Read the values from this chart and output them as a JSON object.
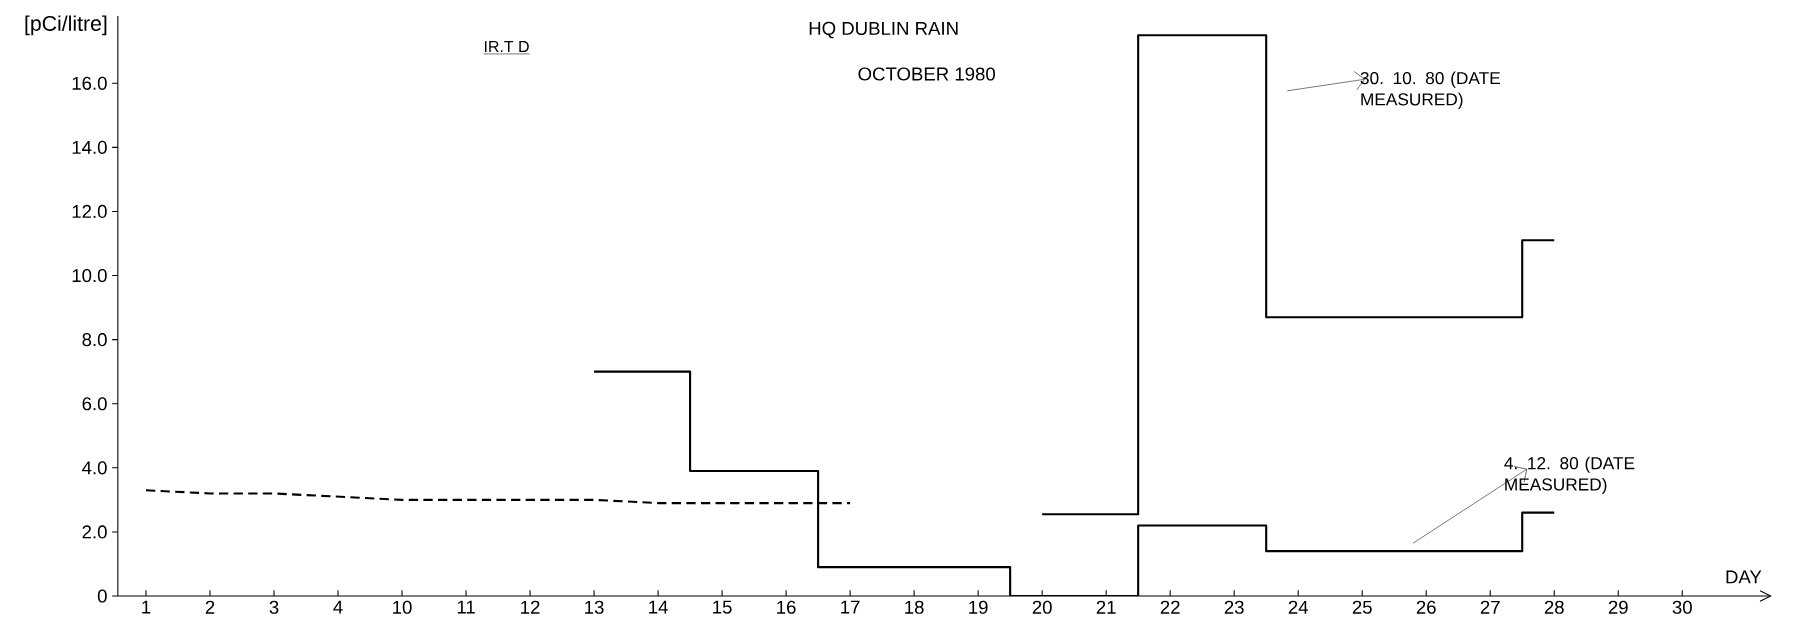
{
  "chart_data": {
    "type": "step",
    "title": "HQ DUBLIN RAIN",
    "subtitle": "OCTOBER 1980",
    "xlabel": "DAY",
    "ylabel": "[pCi/litre]",
    "categories": [
      "1",
      "2",
      "3",
      "4",
      "10",
      "11",
      "12",
      "13",
      "14",
      "15",
      "16",
      "17",
      "18",
      "19",
      "20",
      "21",
      "22",
      "23",
      "24",
      "25",
      "26",
      "27",
      "28",
      "29",
      "30"
    ],
    "ylim": [
      0,
      18.1
    ],
    "yticks": [
      0,
      {
        "value": 2,
        "label": "2.0"
      },
      {
        "value": 4,
        "label": "4.0"
      },
      {
        "value": 6,
        "label": "6.0"
      },
      {
        "value": 8,
        "label": "8.0"
      },
      {
        "value": 10,
        "label": "10.0"
      },
      {
        "value": 12,
        "label": "12.0"
      },
      {
        "value": 14,
        "label": "14.0"
      },
      {
        "value": 16,
        "label": "16.0"
      }
    ],
    "marker": "none",
    "series": [
      {
        "color": "#000000",
        "values": [
          null,
          null,
          null,
          null,
          null,
          null,
          null,
          7.0,
          7.0,
          3.9,
          3.9,
          0.9,
          0.9,
          0.9,
          0.0,
          0.0,
          2.2,
          2.2,
          1.4,
          1.4,
          1.4,
          1.4,
          2.6,
          null,
          null
        ]
      },
      {
        "color": "#000000",
        "values": [
          null,
          null,
          null,
          null,
          null,
          null,
          null,
          null,
          null,
          null,
          null,
          null,
          null,
          null,
          2.55,
          2.55,
          17.5,
          17.5,
          8.7,
          8.7,
          8.7,
          8.7,
          11.1,
          null,
          null
        ]
      },
      {
        "type": "line",
        "line_style": "dashed",
        "color": "#000000",
        "values": [
          3.3,
          3.2,
          3.2,
          3.1,
          3.0,
          3.0,
          3.0,
          3.0,
          2.9,
          2.9,
          2.9,
          2.9,
          null,
          null,
          null,
          null,
          null,
          null,
          null,
          null,
          null,
          null,
          null,
          null,
          null
        ]
      }
    ],
    "annotations": [
      "IR.T D",
      "30. 10. 80 (DATE MEASURED)",
      "4. 12. 80 (DATE MEASURED)"
    ]
  }
}
